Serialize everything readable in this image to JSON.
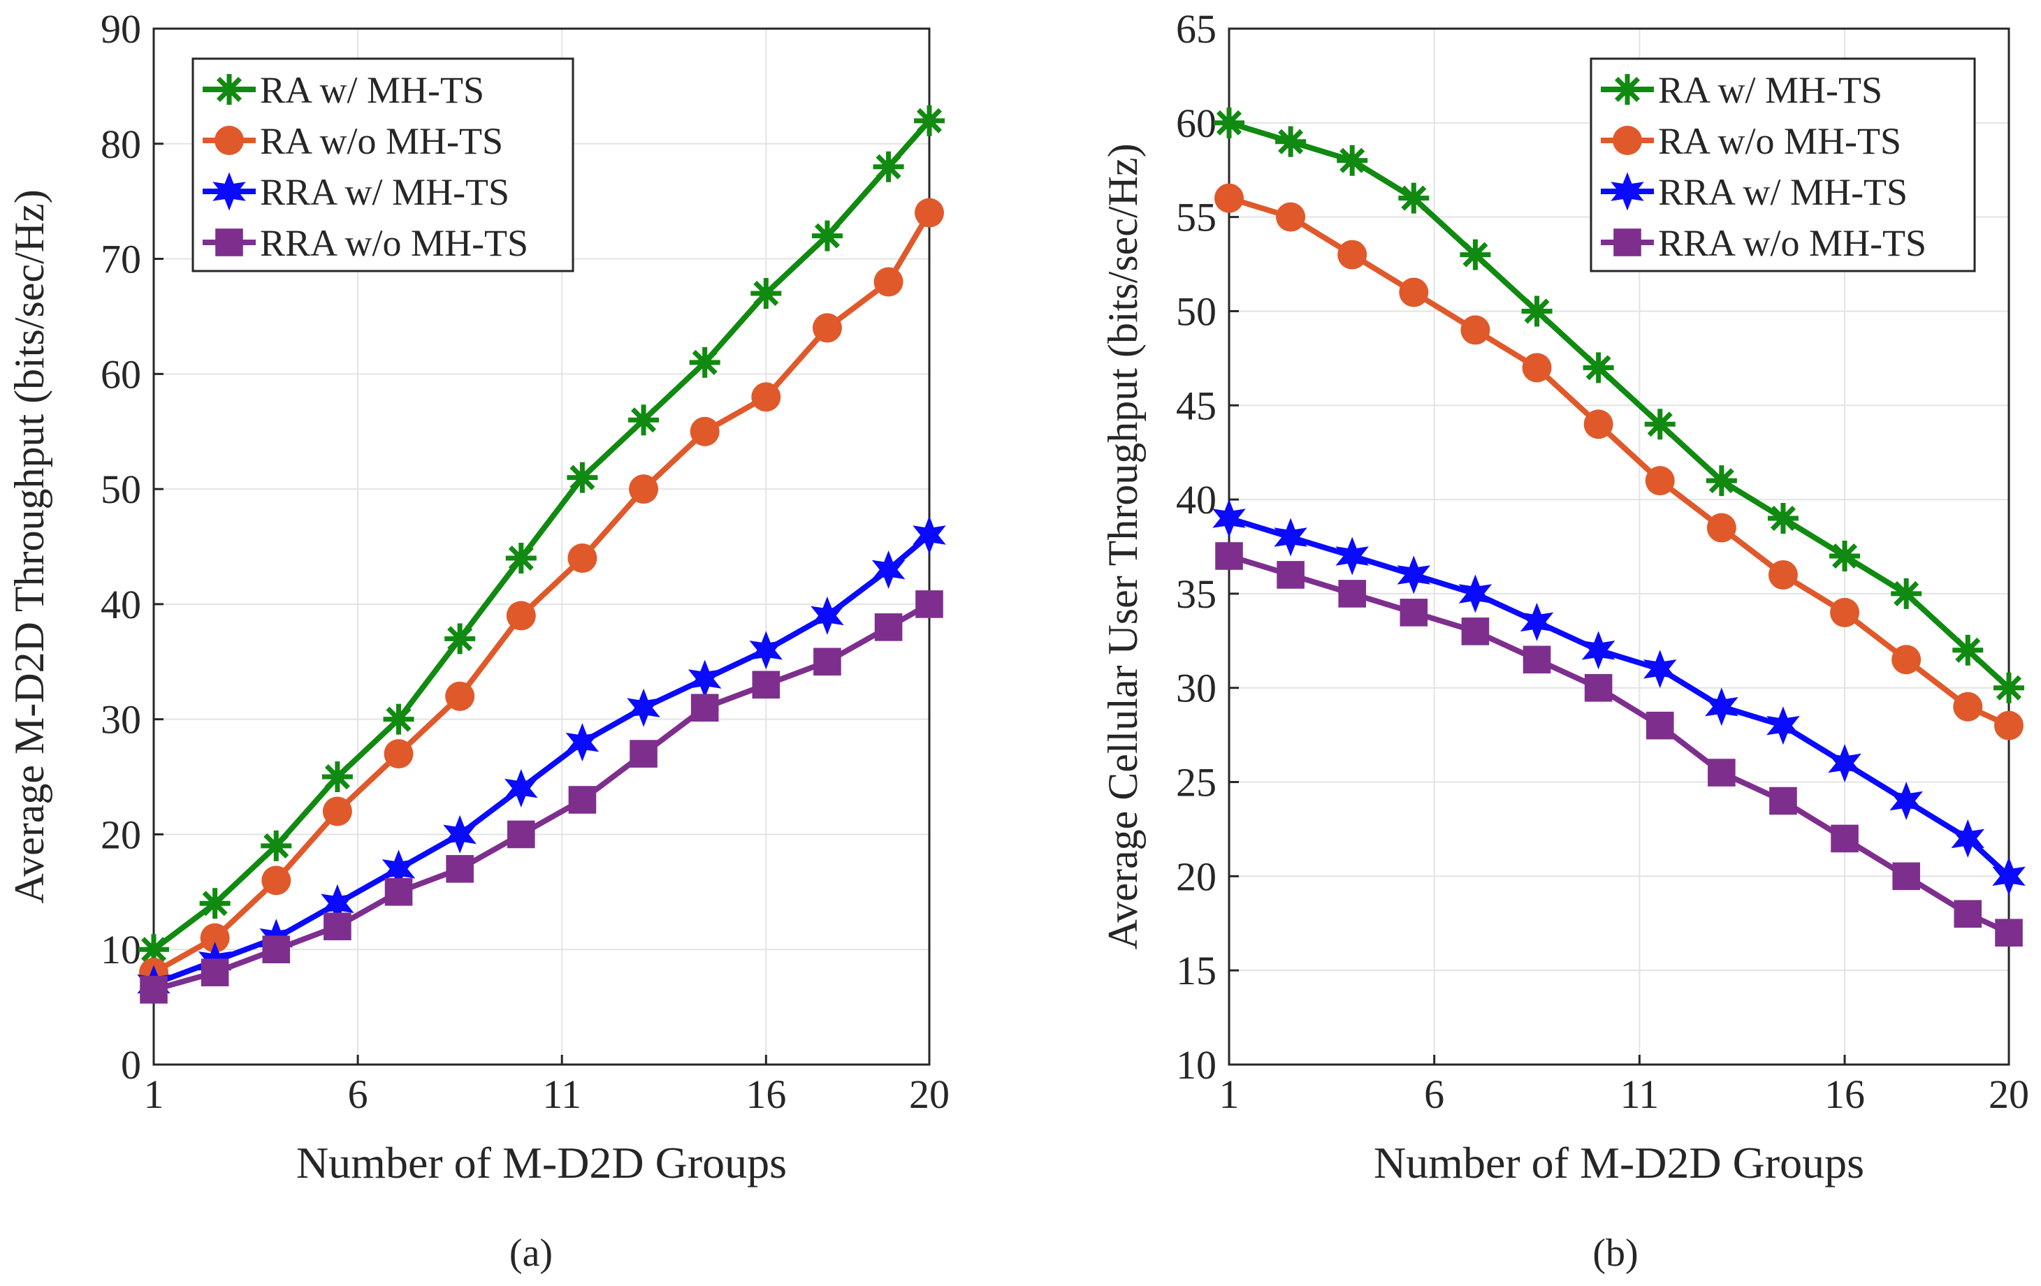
{
  "colors": {
    "green": "#108a10",
    "orange": "#e0592a",
    "blue": "#0a0aff",
    "purple": "#7e2f8e",
    "grid": "#e3e3e3",
    "axis": "#262626"
  },
  "chart_data": [
    {
      "type": "line",
      "caption": "(a)",
      "xlabel": "Number of M-D2D Groups",
      "ylabel": "Average M-D2D Throughput (bits/sec/Hz)",
      "xlim": [
        1,
        20
      ],
      "ylim": [
        0,
        90
      ],
      "xticks": [
        1,
        6,
        11,
        16,
        20
      ],
      "yticks": [
        0,
        10,
        20,
        30,
        40,
        50,
        60,
        70,
        80,
        90
      ],
      "grid": true,
      "legend_position": "top-left",
      "x": [
        1,
        2.5,
        4,
        5.5,
        7,
        8.5,
        10,
        11.5,
        13,
        14.5,
        16,
        17.5,
        19,
        20
      ],
      "series": [
        {
          "name": "RA w/ MH-TS",
          "marker": "asterisk",
          "color_key": "green",
          "values": [
            10,
            14,
            19,
            25,
            30,
            37,
            44,
            51,
            56,
            61,
            67,
            72,
            78,
            82
          ]
        },
        {
          "name": "RA w/o MH-TS",
          "marker": "circle",
          "color_key": "orange",
          "values": [
            8,
            11,
            16,
            22,
            27,
            32,
            39,
            44,
            50,
            55,
            58,
            64,
            68,
            74
          ]
        },
        {
          "name": "RRA w/ MH-TS",
          "marker": "hexagram",
          "color_key": "blue",
          "values": [
            7,
            9,
            11,
            14,
            17,
            20,
            24,
            28,
            31,
            33.5,
            36,
            39,
            43,
            46
          ]
        },
        {
          "name": "RRA w/o MH-TS",
          "marker": "square",
          "color_key": "purple",
          "values": [
            6.5,
            8,
            10,
            12,
            15,
            17,
            20,
            23,
            27,
            31,
            33,
            35,
            38,
            40
          ]
        }
      ]
    },
    {
      "type": "line",
      "caption": "(b)",
      "xlabel": "Number of M-D2D Groups",
      "ylabel": "Average Cellular User Throughput (bits/sec/Hz)",
      "xlim": [
        1,
        20
      ],
      "ylim": [
        10,
        65
      ],
      "xticks": [
        1,
        6,
        11,
        16,
        20
      ],
      "yticks": [
        10,
        15,
        20,
        25,
        30,
        35,
        40,
        45,
        50,
        55,
        60,
        65
      ],
      "grid": true,
      "legend_position": "top-right",
      "x": [
        1,
        2.5,
        4,
        5.5,
        7,
        8.5,
        10,
        11.5,
        13,
        14.5,
        16,
        17.5,
        19,
        20
      ],
      "series": [
        {
          "name": "RA w/ MH-TS",
          "marker": "asterisk",
          "color_key": "green",
          "values": [
            60,
            59,
            58,
            56,
            53,
            50,
            47,
            44,
            41,
            39,
            37,
            35,
            32,
            30
          ]
        },
        {
          "name": "RA w/o MH-TS",
          "marker": "circle",
          "color_key": "orange",
          "values": [
            56,
            55,
            53,
            51,
            49,
            47,
            44,
            41,
            38.5,
            36,
            34,
            31.5,
            29,
            28
          ]
        },
        {
          "name": "RRA w/ MH-TS",
          "marker": "hexagram",
          "color_key": "blue",
          "values": [
            39,
            38,
            37,
            36,
            35,
            33.5,
            32,
            31,
            29,
            28,
            26,
            24,
            22,
            20
          ]
        },
        {
          "name": "RRA w/o MH-TS",
          "marker": "square",
          "color_key": "purple",
          "values": [
            37,
            36,
            35,
            34,
            33,
            31.5,
            30,
            28,
            25.5,
            24,
            22,
            20,
            18,
            17
          ]
        }
      ]
    }
  ]
}
